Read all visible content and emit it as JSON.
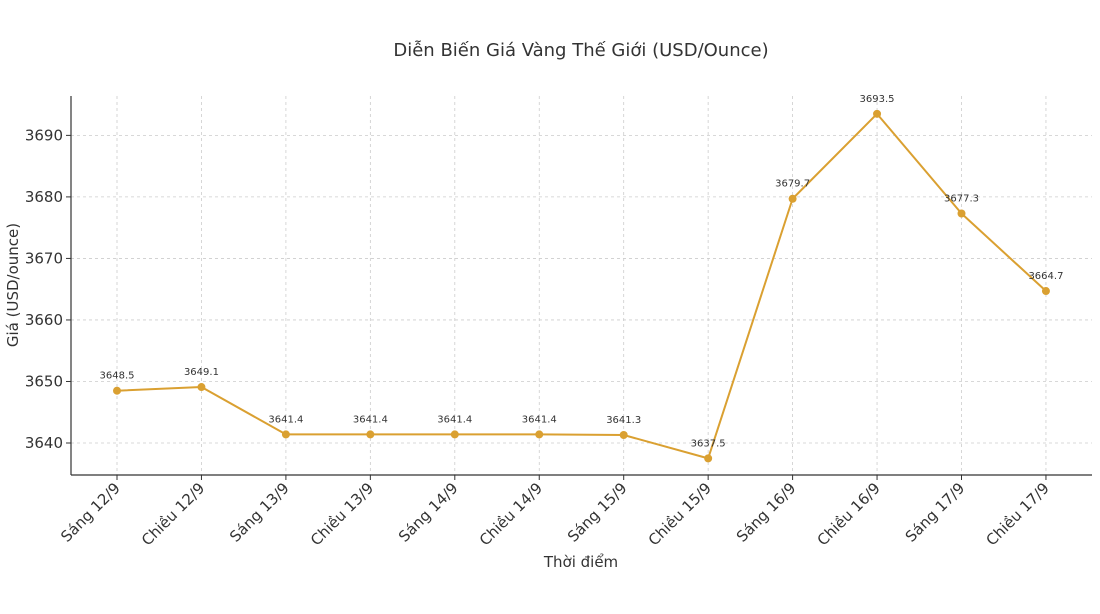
{
  "chart_data": {
    "type": "line",
    "title": "Diễn Biến Giá Vàng Thế Giới (USD/Ounce)",
    "xlabel": "Thời điểm",
    "ylabel": "Giá (USD/ounce)",
    "categories": [
      "Sáng 12/9",
      "Chiều 12/9",
      "Sáng 13/9",
      "Chiều 13/9",
      "Sáng 14/9",
      "Chiều 14/9",
      "Sáng 15/9",
      "Chiều 15/9",
      "Sáng 16/9",
      "Chiều 16/9",
      "Sáng 17/9",
      "Chiều 17/9"
    ],
    "values": [
      3648.5,
      3649.1,
      3641.4,
      3641.4,
      3641.4,
      3641.4,
      3641.3,
      3637.5,
      3679.7,
      3693.5,
      3677.3,
      3664.7
    ],
    "data_labels": [
      "3648.5",
      "3649.1",
      "3641.4",
      "3641.4",
      "3641.4",
      "3641.4",
      "3641.3",
      "3637.5",
      "3679.7",
      "3693.5",
      "3677.3",
      "3664.7"
    ],
    "yticks": [
      3640,
      3650,
      3660,
      3670,
      3680,
      3690
    ],
    "ylim": [
      3634.8,
      3696.4
    ],
    "grid": true,
    "line_color": "#DAA031",
    "grid_color": "#cccccc",
    "axis_color": "#333333",
    "text_color": "#333333"
  }
}
